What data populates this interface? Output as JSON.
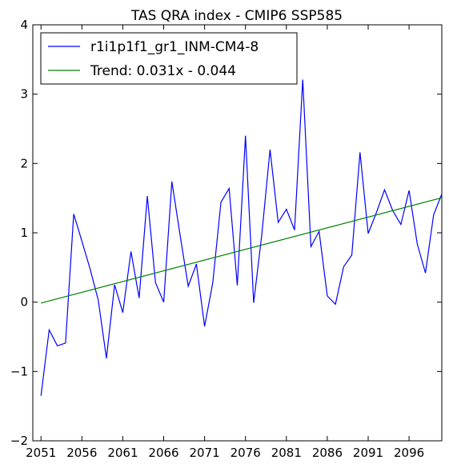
{
  "chart_data": {
    "type": "line",
    "title": "TAS QRA index - CMIP6 SSP585",
    "xlabel": "",
    "ylabel": "",
    "xlim": [
      2050,
      2100
    ],
    "ylim": [
      -2,
      4
    ],
    "x_ticks": [
      2051,
      2056,
      2061,
      2066,
      2071,
      2076,
      2081,
      2086,
      2091,
      2096
    ],
    "y_ticks": [
      -2,
      -1,
      0,
      1,
      2,
      3,
      4
    ],
    "grid": false,
    "legend_position": "top-left",
    "series": [
      {
        "name": "r1i1p1f1_gr1_INM-CM4-8",
        "color": "#0000ff",
        "x": [
          2051,
          2052,
          2053,
          2054,
          2055,
          2056,
          2057,
          2058,
          2059,
          2060,
          2061,
          2062,
          2063,
          2064,
          2065,
          2066,
          2067,
          2068,
          2069,
          2070,
          2071,
          2072,
          2073,
          2074,
          2075,
          2076,
          2077,
          2078,
          2079,
          2080,
          2081,
          2082,
          2083,
          2084,
          2085,
          2086,
          2087,
          2088,
          2089,
          2090,
          2091,
          2092,
          2093,
          2094,
          2095,
          2096,
          2097,
          2098,
          2099,
          2100
        ],
        "values": [
          -1.35,
          -0.4,
          -0.63,
          -0.59,
          1.27,
          0.88,
          0.48,
          0.03,
          -0.81,
          0.25,
          -0.15,
          0.73,
          0.06,
          1.53,
          0.28,
          0.0,
          1.74,
          0.97,
          0.23,
          0.55,
          -0.35,
          0.28,
          1.44,
          1.64,
          0.24,
          2.4,
          -0.01,
          0.98,
          2.2,
          1.15,
          1.34,
          1.04,
          3.21,
          0.8,
          1.02,
          0.09,
          -0.03,
          0.51,
          0.68,
          2.16,
          0.99,
          1.29,
          1.62,
          1.32,
          1.12,
          1.61,
          0.84,
          0.42,
          1.26,
          1.56
        ]
      },
      {
        "name": "Trend: 0.031x - 0.044",
        "color": "#008000",
        "x": [
          2051,
          2100
        ],
        "values": [
          -0.013,
          1.506
        ]
      }
    ]
  }
}
